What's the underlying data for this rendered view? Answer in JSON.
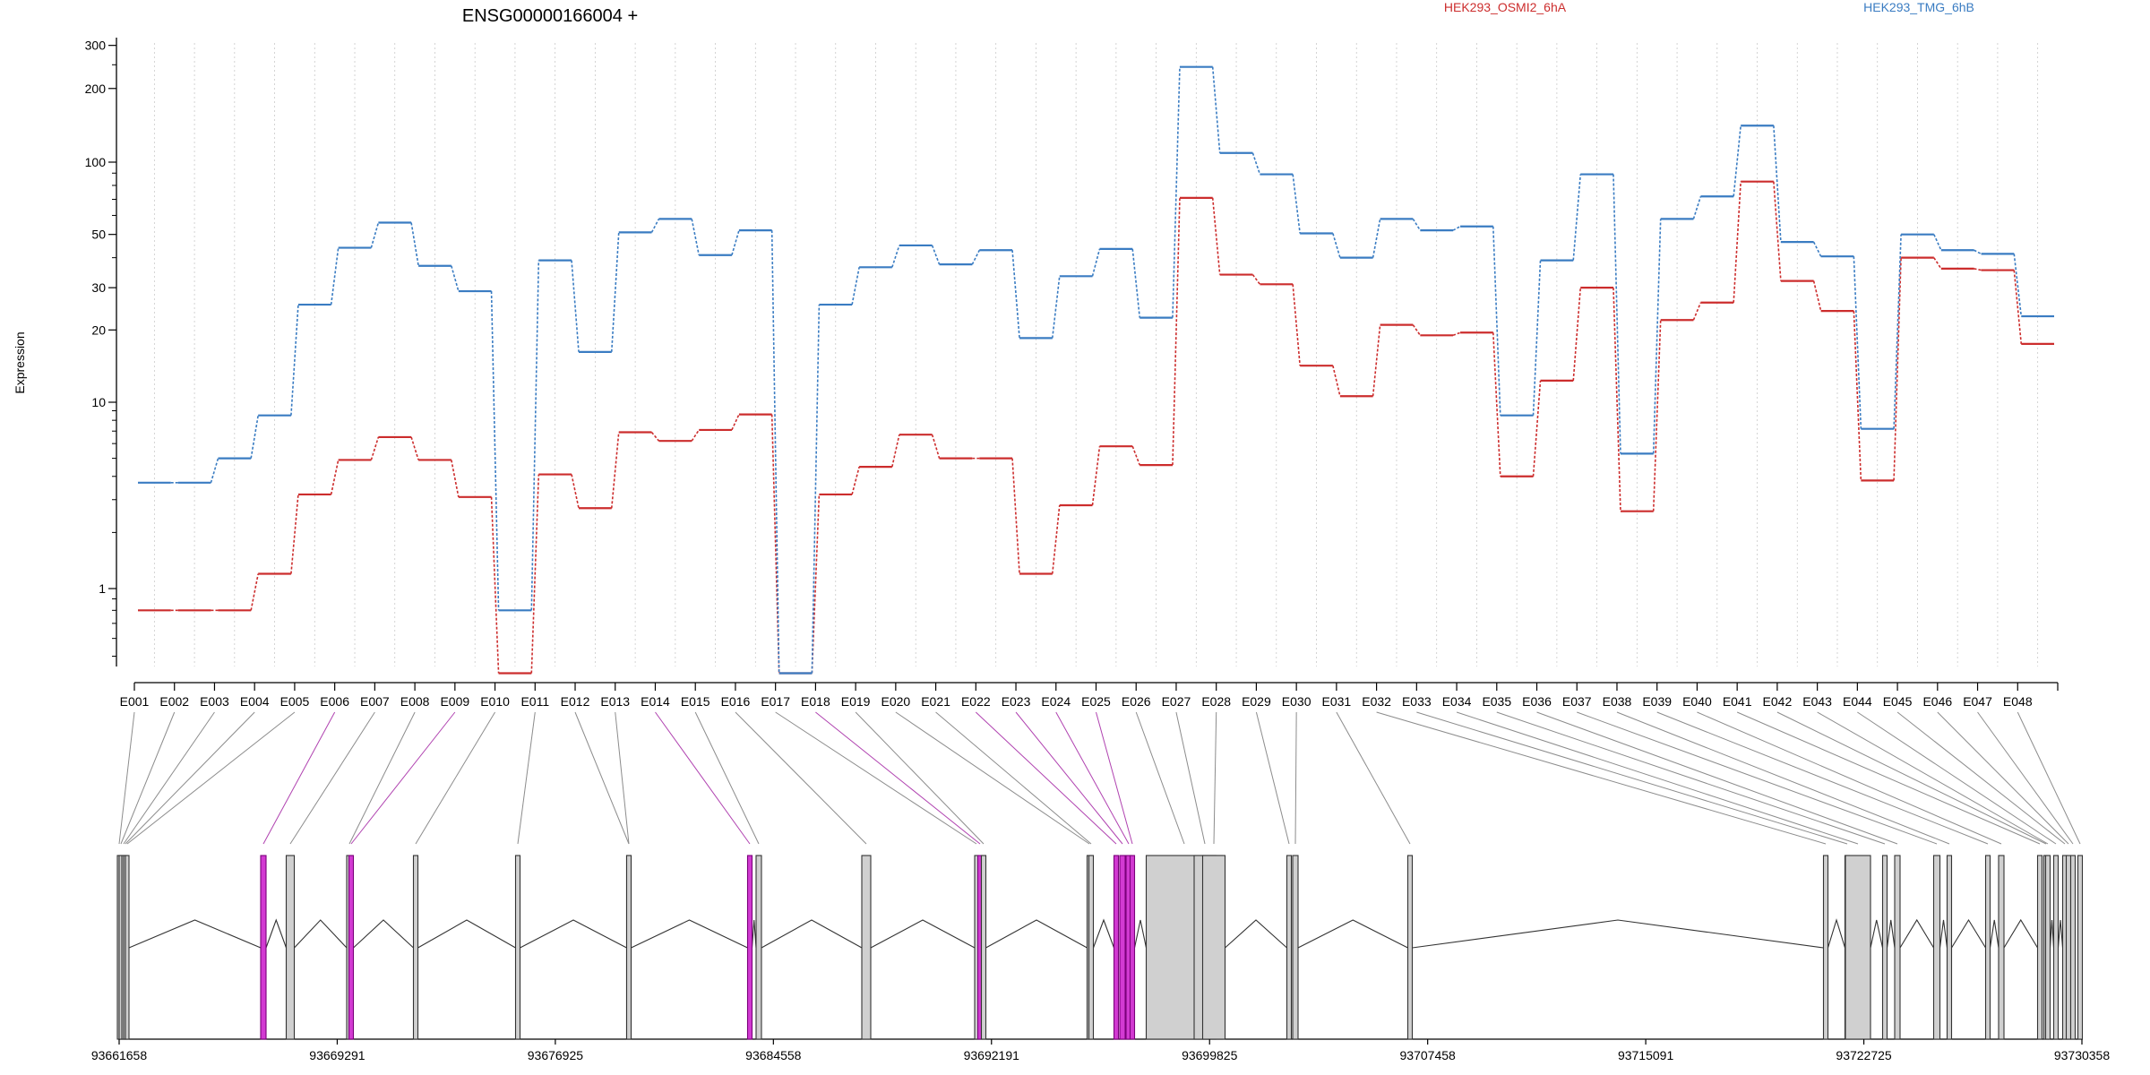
{
  "chart_data": {
    "type": "line",
    "title": "ENSG00000166004 +",
    "ylabel": "Expression",
    "y_scale": "log",
    "ylim": [
      0.45,
      320
    ],
    "y_ticks": [
      1,
      10,
      20,
      30,
      50,
      100,
      200,
      300
    ],
    "grid": "vertical dotted lines at exons",
    "legend_placement": "top-right",
    "categories": [
      "E001",
      "E002",
      "E003",
      "E004",
      "E005",
      "E006",
      "E007",
      "E008",
      "E009",
      "E010",
      "E011",
      "E012",
      "E013",
      "E014",
      "E015",
      "E016",
      "E017",
      "E018",
      "E019",
      "E020",
      "E021",
      "E022",
      "E023",
      "E024",
      "E025",
      "E026",
      "E027",
      "E028",
      "E029",
      "E030",
      "E031",
      "E032",
      "E033",
      "E034",
      "E035",
      "E036",
      "E037",
      "E038",
      "E039",
      "E040",
      "E041",
      "E042",
      "E043",
      "E044",
      "E045",
      "E046",
      "E047",
      "E048"
    ],
    "series": [
      {
        "name": "HEK293_OSMI2_6hA",
        "color": "#cc2d2d",
        "values": [
          0.8,
          0.8,
          0.8,
          1.2,
          3.2,
          4.9,
          6.5,
          4.9,
          3.1,
          0.42,
          4.1,
          2.7,
          6.9,
          6.2,
          7.1,
          8.6,
          0.42,
          3.2,
          4.5,
          6.7,
          5.0,
          5.0,
          1.2,
          2.8,
          5.8,
          4.6,
          71,
          34,
          31,
          14.2,
          10.6,
          21,
          19,
          19.5,
          4.0,
          12.3,
          30,
          2.6,
          22,
          26,
          83,
          32,
          24,
          3.8,
          40,
          36,
          35.5,
          17.5
        ]
      },
      {
        "name": "HEK293_TMG_6hB",
        "color": "#3a7cc2",
        "values": [
          3.7,
          3.7,
          5.0,
          8.5,
          25.5,
          44,
          56,
          37,
          29,
          0.8,
          39,
          16.2,
          51,
          58,
          41,
          52,
          0.42,
          25.5,
          36.5,
          45,
          37.5,
          43,
          18.5,
          33.5,
          43.5,
          22.5,
          245,
          109,
          89,
          50.5,
          40,
          58,
          52,
          54,
          8.5,
          39,
          89,
          5.3,
          58,
          72,
          141,
          46.5,
          40.5,
          7.2,
          50,
          43,
          41.5,
          22.8
        ]
      }
    ],
    "gene_axis": {
      "tick_labels": [
        "93661658",
        "93669291",
        "93676925",
        "93684558",
        "93692191",
        "93699825",
        "93707458",
        "93715091",
        "93722725",
        "93730358"
      ],
      "range": [
        93661658,
        93730358
      ]
    }
  }
}
